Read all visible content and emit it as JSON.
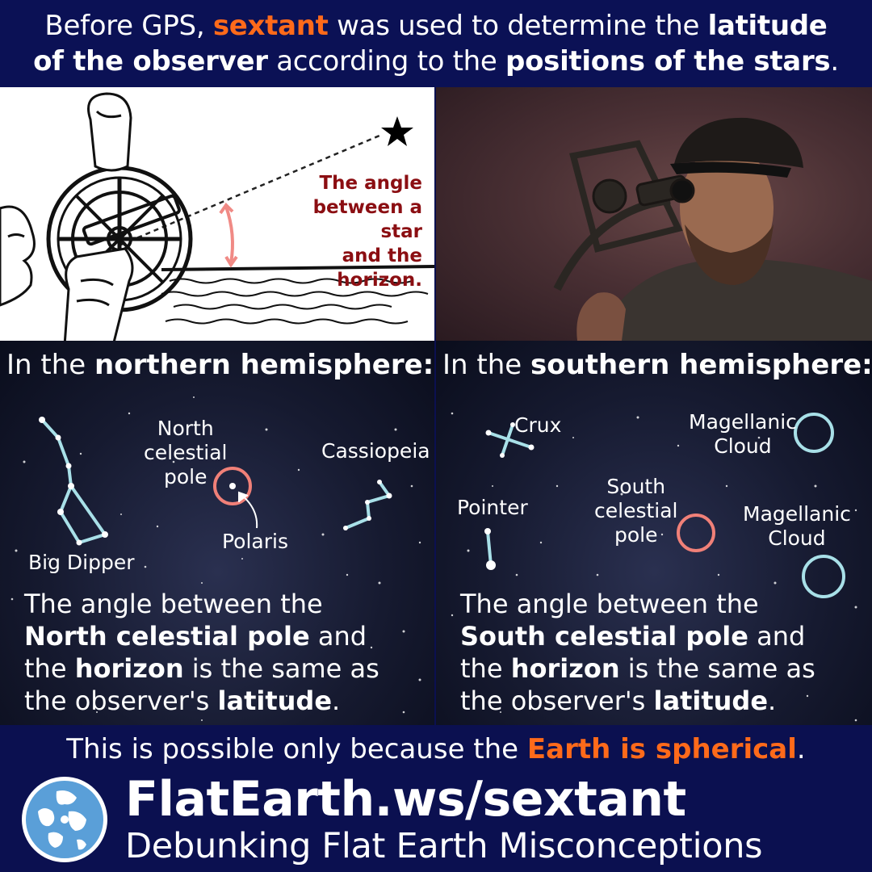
{
  "header": {
    "t1": "Before GPS, ",
    "t2": "sextant",
    "t3": " was used to determine the ",
    "t4": "latitude",
    "t5": "of the observer",
    "t6": " according to the ",
    "t7": "positions of the stars",
    "t8": "."
  },
  "diagram": {
    "angle_label_1": "The angle",
    "angle_label_2": "between a star",
    "angle_label_3": "and the horizon."
  },
  "north": {
    "title_pre": "In the ",
    "title_bold": "northern hemisphere:",
    "labels": {
      "ncp_1": "North",
      "ncp_2": "celestial",
      "ncp_3": "pole",
      "cassiopeia": "Cassiopeia",
      "polaris": "Polaris",
      "big_dipper": "Big Dipper"
    },
    "caption": {
      "c1": "The angle between the",
      "c2": "North celestial pole",
      "c3": " and",
      "c4": "the ",
      "c5": "horizon",
      "c6": " is the same as",
      "c7": "the observer's ",
      "c8": "latitude",
      "c9": "."
    }
  },
  "south": {
    "title_pre": "In the ",
    "title_bold": "southern hemisphere:",
    "labels": {
      "crux": "Crux",
      "mag1_1": "Magellanic",
      "mag1_2": "Cloud",
      "scp_1": "South",
      "scp_2": "celestial",
      "scp_3": "pole",
      "pointer": "Pointer",
      "mag2_1": "Magellanic",
      "mag2_2": "Cloud"
    },
    "caption": {
      "c1": "The angle between the",
      "c2": "South celestial pole",
      "c3": " and",
      "c4": "the ",
      "c5": "horizon",
      "c6": " is the same as",
      "c7": "the observer's ",
      "c8": "latitude",
      "c9": "."
    }
  },
  "footer": {
    "n1": "This is possible only because the ",
    "n2": "Earth is spherical",
    "n3": ".",
    "site": "FlatEarth.ws/sextant",
    "tagline": "Debunking Flat Earth Misconceptions"
  },
  "colors": {
    "background": "#0b1050",
    "accent_orange": "#ff6a1a",
    "label_red": "#8b0e12",
    "constellation_line": "#a8e0e8",
    "pole_circle": "#f08078"
  }
}
